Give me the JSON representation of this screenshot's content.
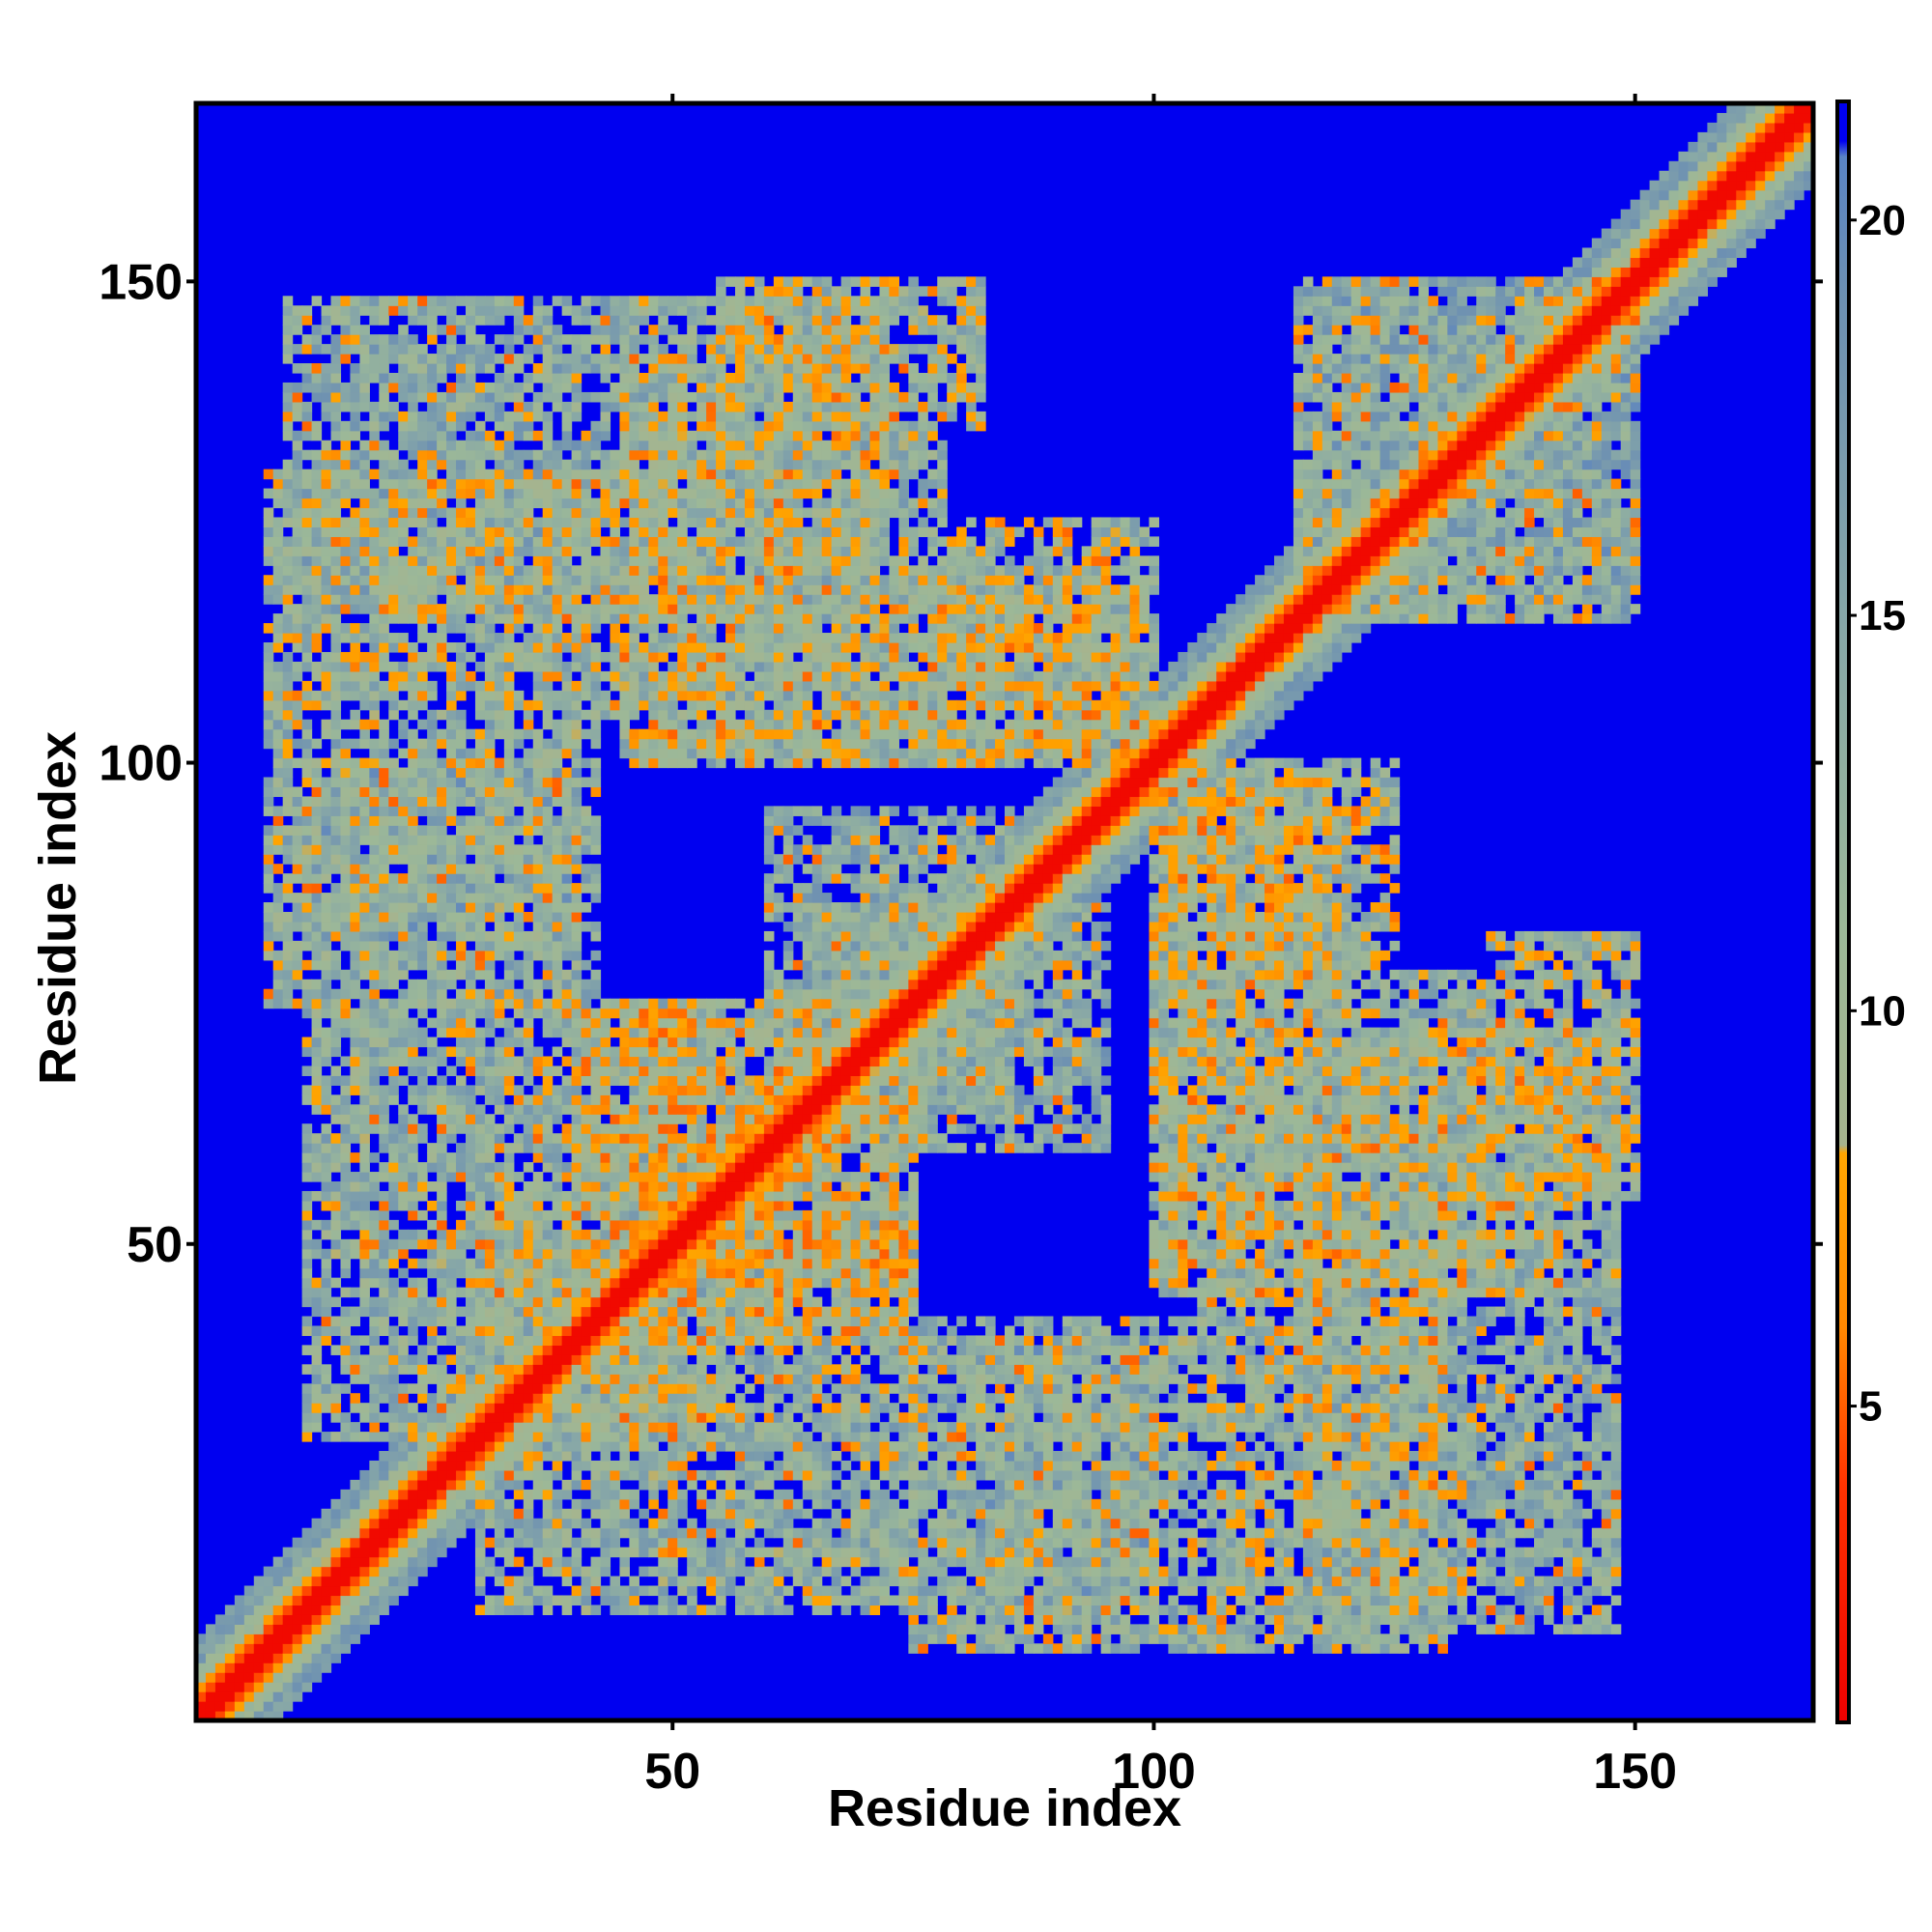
{
  "chart_data": {
    "type": "heatmap",
    "title": "",
    "xlabel": "Residue index",
    "ylabel": "Residue index",
    "xlim": [
      0.5,
      168.5
    ],
    "ylim": [
      0.5,
      168.5
    ],
    "n_residues": 168,
    "x_ticks": [
      50,
      100,
      150
    ],
    "y_ticks": [
      50,
      100,
      150
    ],
    "x_tick_labels": [
      "50",
      "100",
      "150"
    ],
    "y_tick_labels": [
      "50",
      "100",
      "150"
    ],
    "colorbar": {
      "range": [
        1,
        21.5
      ],
      "ticks": [
        5,
        10,
        15,
        20
      ],
      "tick_labels": [
        "5",
        "10",
        "15",
        "20"
      ],
      "stops": [
        {
          "value": 1,
          "color": "#ee0000"
        },
        {
          "value": 4,
          "color": "#ff3300"
        },
        {
          "value": 6,
          "color": "#ff8800"
        },
        {
          "value": 8.2,
          "color": "#ffa500"
        },
        {
          "value": 8.3,
          "color": "#a6b48e"
        },
        {
          "value": 11,
          "color": "#9cb898"
        },
        {
          "value": 15,
          "color": "#86a6a8"
        },
        {
          "value": 19,
          "color": "#6d90b2"
        },
        {
          "value": 20.8,
          "color": "#5a84c4"
        },
        {
          "value": 21.0,
          "color": "#0000f0"
        }
      ],
      "background_color": "#0000f0"
    },
    "contact_regions": [
      {
        "x": [
          10,
          45
        ],
        "y": [
          115,
          148
        ],
        "level": 14
      },
      {
        "x": [
          45,
          72
        ],
        "y": [
          100,
          148
        ],
        "level": 12
      },
      {
        "x": [
          13,
          40
        ],
        "y": [
          80,
          100
        ],
        "level": 15
      },
      {
        "x": [
          12,
          55
        ],
        "y": [
          30,
          75
        ],
        "level": 13
      },
      {
        "x": [
          48,
          75
        ],
        "y": [
          40,
          65
        ],
        "level": 10
      },
      {
        "x": [
          75,
          105
        ],
        "y": [
          8,
          42
        ],
        "level": 13
      },
      {
        "x": [
          105,
          130
        ],
        "y": [
          8,
          45
        ],
        "level": 12
      },
      {
        "x": [
          100,
          142
        ],
        "y": [
          45,
          78
        ],
        "level": 13
      },
      {
        "x": [
          100,
          125
        ],
        "y": [
          68,
          100
        ],
        "level": 12
      },
      {
        "x": [
          115,
          150
        ],
        "y": [
          115,
          150
        ],
        "level": 15
      },
      {
        "x": [
          80,
          98
        ],
        "y": [
          100,
          118
        ],
        "level": 12
      },
      {
        "x": [
          60,
          85
        ],
        "y": [
          100,
          120
        ],
        "level": 12
      },
      {
        "x": [
          60,
          85
        ],
        "y": [
          65,
          95
        ],
        "level": 14
      },
      {
        "x": [
          135,
          150
        ],
        "y": [
          55,
          82
        ],
        "level": 12
      }
    ]
  }
}
